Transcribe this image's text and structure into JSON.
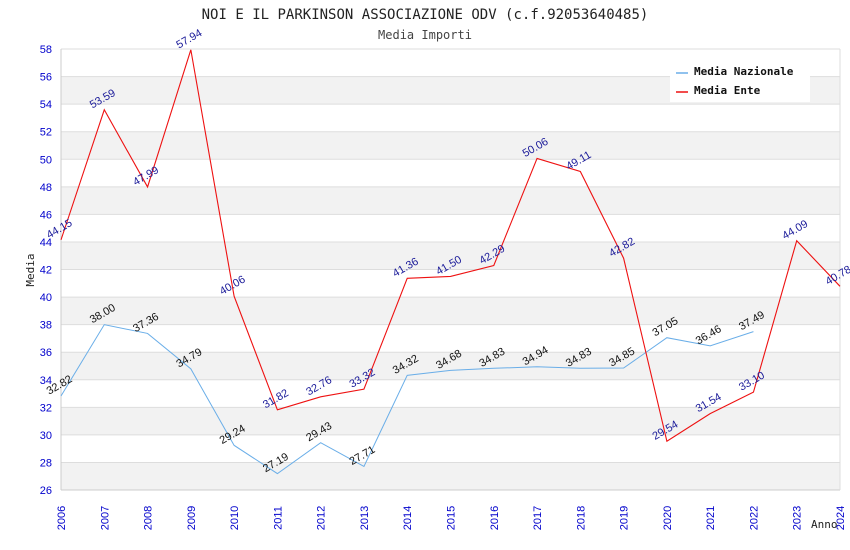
{
  "chart_data": {
    "type": "line",
    "title": "NOI E IL PARKINSON ASSOCIAZIONE ODV (c.f.92053640485)",
    "subtitle": "Media Importi",
    "xlabel": "Anno",
    "ylabel": "Media",
    "ylim": [
      26,
      58
    ],
    "y_ticks": [
      26,
      28,
      30,
      32,
      34,
      36,
      38,
      40,
      42,
      44,
      46,
      48,
      50,
      52,
      54,
      56,
      58
    ],
    "x": [
      2006,
      2007,
      2008,
      2009,
      2010,
      2011,
      2012,
      2013,
      2014,
      2015,
      2016,
      2017,
      2018,
      2019,
      2020,
      2021,
      2022,
      2023,
      2024
    ],
    "grid": true,
    "legend_position": "top-right",
    "series": [
      {
        "name": "Media Nazionale",
        "color": "#6aaee8",
        "values": [
          32.82,
          38.0,
          37.36,
          34.79,
          29.24,
          27.19,
          29.43,
          27.71,
          34.32,
          34.68,
          34.83,
          34.94,
          34.83,
          34.85,
          37.05,
          36.46,
          37.49,
          null,
          null
        ],
        "labels": [
          "32.82",
          "38.00",
          "37.36",
          "34.79",
          "29.24",
          "27.19",
          "29.43",
          "27.71",
          "34.32",
          "34.68",
          "34.83",
          "34.94",
          "34.83",
          "34.85",
          "37.05",
          "36.46",
          "37.49",
          "",
          ""
        ]
      },
      {
        "name": "Media Ente",
        "color": "#ee1111",
        "values": [
          44.15,
          53.59,
          47.99,
          57.94,
          40.06,
          31.82,
          32.76,
          33.32,
          41.36,
          41.5,
          42.29,
          50.06,
          49.11,
          42.82,
          29.54,
          31.54,
          33.1,
          44.09,
          40.78
        ],
        "labels": [
          "44.15",
          "53.59",
          "47.99",
          "57.94",
          "40.06",
          "31.82",
          "32.76",
          "33.32",
          "41.36",
          "41.50",
          "42.29",
          "50.06",
          "49.11",
          "42.82",
          "29.54",
          "31.54",
          "33.10",
          "44.09",
          "40.78"
        ]
      }
    ]
  }
}
